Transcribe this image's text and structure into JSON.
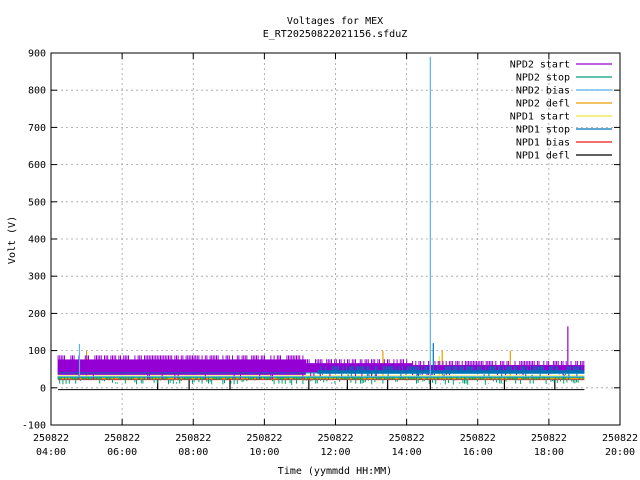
{
  "chart_data": {
    "type": "line",
    "title": "Voltages for MEX",
    "subtitle": "E_RT20250822021156.sfduZ",
    "xlabel": "Time (yymmdd HH:MM)",
    "ylabel": "Volt (V)",
    "xlim": [
      "250822 04:00",
      "250822 20:00"
    ],
    "ylim": [
      -100,
      900
    ],
    "grid": true,
    "legend_position": "top-right",
    "x_ticks": [
      {
        "date": "250822",
        "time": "04:00"
      },
      {
        "date": "250822",
        "time": "06:00"
      },
      {
        "date": "250822",
        "time": "08:00"
      },
      {
        "date": "250822",
        "time": "10:00"
      },
      {
        "date": "250822",
        "time": "12:00"
      },
      {
        "date": "250822",
        "time": "14:00"
      },
      {
        "date": "250822",
        "time": "16:00"
      },
      {
        "date": "250822",
        "time": "18:00"
      },
      {
        "date": "250822",
        "time": "20:00"
      }
    ],
    "y_ticks": [
      "-100",
      "0",
      "100",
      "200",
      "300",
      "400",
      "500",
      "600",
      "700",
      "800",
      "900"
    ],
    "data_extent": [
      "250822 04:12",
      "250822 19:00"
    ],
    "series": [
      {
        "name": "NPD2 start",
        "color": "#9400d3",
        "baseline": 60,
        "bands": [
          {
            "start": "250822 04:12",
            "end": "250822 11:10",
            "low": 35,
            "high": 87
          },
          {
            "start": "250822 11:10",
            "end": "250822 14:10",
            "low": 42,
            "high": 77
          },
          {
            "start": "250822 14:10",
            "end": "250822 19:00",
            "low": 45,
            "high": 72
          }
        ],
        "spikes": [
          {
            "time": "250822 18:32",
            "value": 165
          }
        ]
      },
      {
        "name": "NPD2 stop",
        "color": "#009e73",
        "baseline": 28,
        "bands": [
          {
            "start": "250822 04:12",
            "end": "250822 19:00",
            "low": 22,
            "high": 32
          }
        ],
        "spikes": []
      },
      {
        "name": "NPD2 bias",
        "color": "#56b4e9",
        "baseline": 30,
        "bands": [],
        "spikes": [
          {
            "time": "250822 14:40",
            "value": 890
          },
          {
            "time": "250822 04:48",
            "value": 118
          }
        ]
      },
      {
        "name": "NPD2 defl",
        "color": "#e69f00",
        "baseline": 25,
        "bands": [],
        "spikes": [
          {
            "time": "250822 05:00",
            "value": 100
          },
          {
            "time": "250822 13:20",
            "value": 100
          },
          {
            "time": "250822 15:00",
            "value": 100
          },
          {
            "time": "250822 16:55",
            "value": 100
          }
        ]
      },
      {
        "name": "NPD1 start",
        "color": "#f0e442",
        "baseline": 32,
        "bands": [],
        "spikes": [
          {
            "time": "250822 14:55",
            "value": 85
          }
        ]
      },
      {
        "name": "NPD1 stop",
        "color": "#0072b2",
        "baseline": 40,
        "bands": [
          {
            "start": "250822 11:30",
            "end": "250822 19:00",
            "low": 38,
            "high": 58
          }
        ],
        "spikes": [
          {
            "time": "250822 14:45",
            "value": 120
          }
        ]
      },
      {
        "name": "NPD1 bias",
        "color": "#e51e10",
        "baseline": 22,
        "bands": [],
        "spikes": []
      },
      {
        "name": "NPD1 defl",
        "color": "#000000",
        "baseline": -5,
        "bands": [],
        "spikes": [
          {
            "time": "250822 07:00",
            "value": 25
          },
          {
            "time": "250822 07:53",
            "value": 25
          },
          {
            "time": "250822 09:02",
            "value": 25
          },
          {
            "time": "250822 11:15",
            "value": 25
          },
          {
            "time": "250822 12:20",
            "value": 25
          },
          {
            "time": "250822 13:28",
            "value": 25
          },
          {
            "time": "250822 14:40",
            "value": 25
          },
          {
            "time": "250822 16:45",
            "value": 25
          },
          {
            "time": "250822 18:10",
            "value": 25
          }
        ]
      }
    ]
  }
}
